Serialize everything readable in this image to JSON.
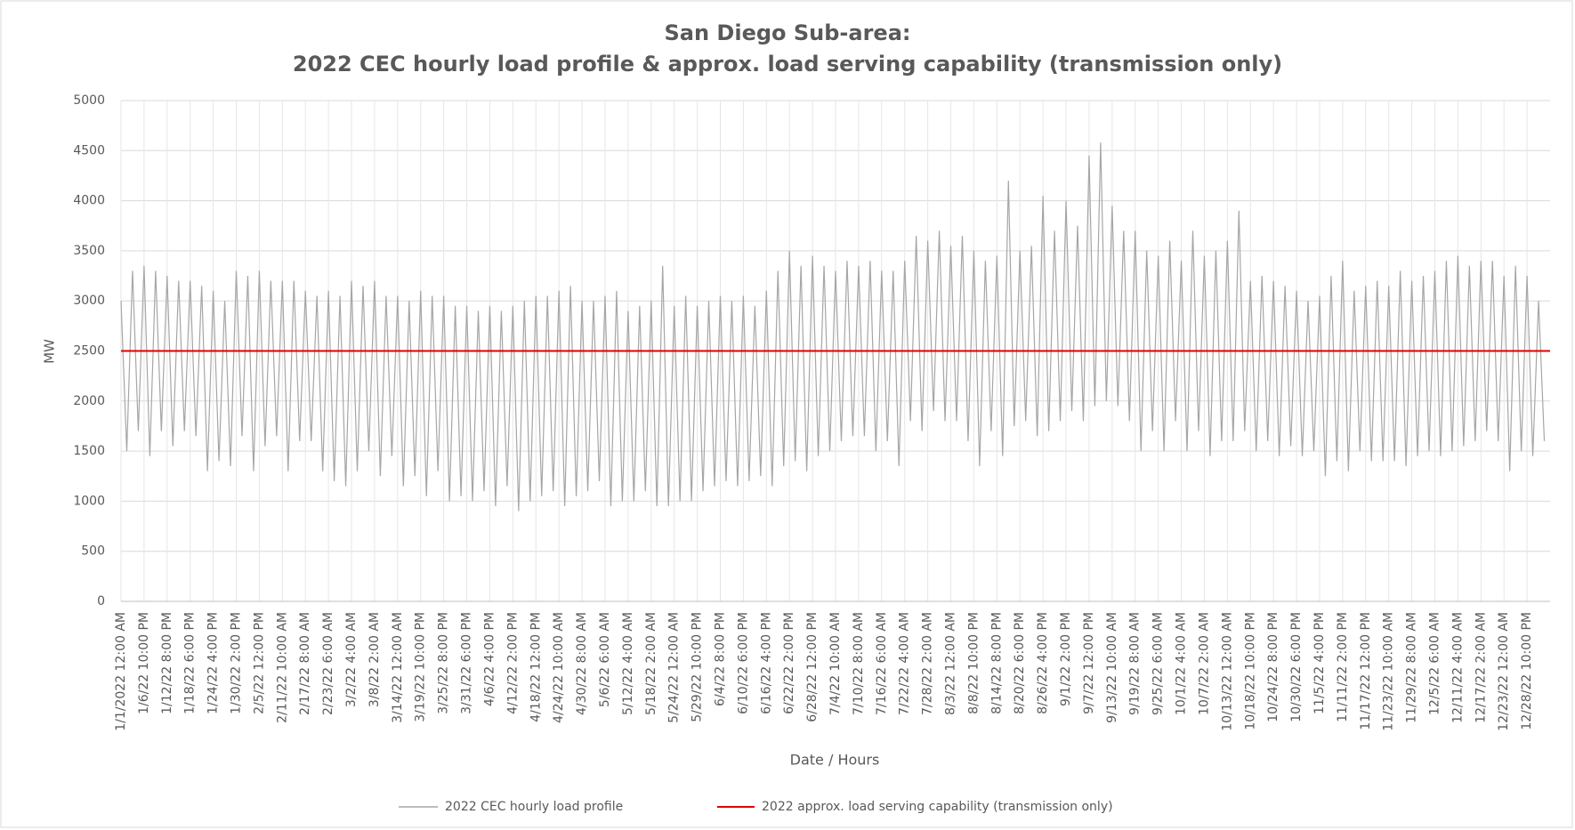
{
  "chart_data": {
    "type": "line",
    "title": [
      "San Diego Sub-area:",
      "2022 CEC hourly load profile & approx. load serving capability (transmission only)"
    ],
    "xlabel": "Date / Hours",
    "ylabel": "MW",
    "ylim": [
      0,
      5000
    ],
    "yticks": [
      0,
      500,
      1000,
      1500,
      2000,
      2500,
      3000,
      3500,
      4000,
      4500,
      5000
    ],
    "grid": true,
    "legend": "bottom",
    "categories": [
      "1/1/2022 12:00 AM",
      null,
      null,
      null,
      "1/6/22 10:00 PM",
      null,
      null,
      null,
      "1/12/22 8:00 PM",
      null,
      null,
      null,
      "1/18/22 6:00 PM",
      null,
      null,
      null,
      "1/24/22 4:00 PM",
      null,
      null,
      null,
      "1/30/22 2:00 PM",
      null,
      null,
      null,
      "2/5/22 12:00 PM",
      null,
      null,
      null,
      "2/11/22 10:00 AM",
      null,
      null,
      null,
      "2/17/22 8:00 AM",
      null,
      null,
      null,
      "2/23/22 6:00 AM",
      null,
      null,
      null,
      "3/2/22 4:00 AM",
      null,
      null,
      null,
      "3/8/22 2:00 AM",
      null,
      null,
      null,
      "3/14/22 12:00 AM",
      null,
      null,
      null,
      "3/19/22 10:00 PM",
      null,
      null,
      null,
      "3/25/22 8:00 PM",
      null,
      null,
      null,
      "3/31/22 6:00 PM",
      null,
      null,
      null,
      "4/6/22 4:00 PM",
      null,
      null,
      null,
      "4/12/22 2:00 PM",
      null,
      null,
      null,
      "4/18/22 12:00 PM",
      null,
      null,
      null,
      "4/24/22 10:00 AM",
      null,
      null,
      null,
      "4/30/22 8:00 AM",
      null,
      null,
      null,
      "5/6/22 6:00 AM",
      null,
      null,
      null,
      "5/12/22 4:00 AM",
      null,
      null,
      null,
      "5/18/22 2:00 AM",
      null,
      null,
      null,
      "5/24/22 12:00 AM",
      null,
      null,
      null,
      "5/29/22 10:00 PM",
      null,
      null,
      null,
      "6/4/22 8:00 PM",
      null,
      null,
      null,
      "6/10/22 6:00 PM",
      null,
      null,
      null,
      "6/16/22 4:00 PM",
      null,
      null,
      null,
      "6/22/22 2:00 PM",
      null,
      null,
      null,
      "6/28/22 12:00 PM",
      null,
      null,
      null,
      "7/4/22 10:00 AM",
      null,
      null,
      null,
      "7/10/22 8:00 AM",
      null,
      null,
      null,
      "7/16/22 6:00 AM",
      null,
      null,
      null,
      "7/22/22 4:00 AM",
      null,
      null,
      null,
      "7/28/22 2:00 AM",
      null,
      null,
      null,
      "8/3/22 12:00 AM",
      null,
      null,
      null,
      "8/8/22 10:00 PM",
      null,
      null,
      null,
      "8/14/22 8:00 PM",
      null,
      null,
      null,
      "8/20/22 6:00 PM",
      null,
      null,
      null,
      "8/26/22 4:00 PM",
      null,
      null,
      null,
      "9/1/22 2:00 PM",
      null,
      null,
      null,
      "9/7/22 12:00 PM",
      null,
      null,
      null,
      "9/13/22 10:00 AM",
      null,
      null,
      null,
      "9/19/22 8:00 AM",
      null,
      null,
      null,
      "9/25/22 6:00 AM",
      null,
      null,
      null,
      "10/1/22 4:00 AM",
      null,
      null,
      null,
      "10/7/22 2:00 AM",
      null,
      null,
      null,
      "10/13/22 12:00 AM",
      null,
      null,
      null,
      "10/18/22 10:00 PM",
      null,
      null,
      null,
      "10/24/22 8:00 PM",
      null,
      null,
      null,
      "10/30/22 6:00 PM",
      null,
      null,
      null,
      "11/5/22 4:00 PM",
      null,
      null,
      null,
      "11/11/22 2:00 PM",
      null,
      null,
      null,
      "11/17/22 12:00 PM",
      null,
      null,
      null,
      "11/23/22 10:00 AM",
      null,
      null,
      null,
      "11/29/22 8:00 AM",
      null,
      null,
      null,
      "12/5/22 6:00 AM",
      null,
      null,
      null,
      "12/11/22 4:00 AM",
      null,
      null,
      null,
      "12/17/22 2:00 AM",
      null,
      null,
      null,
      "12/23/22 12:00 AM",
      null,
      null,
      null,
      "12/28/22 10:00 PM",
      null,
      null,
      null
    ],
    "series": [
      {
        "name": "2022 CEC hourly load profile",
        "color": "#a6a6a6",
        "values": [
          3000,
          1500,
          3300,
          1700,
          3350,
          1450,
          3300,
          1700,
          3250,
          1550,
          3200,
          1700,
          3200,
          1650,
          3150,
          1300,
          3100,
          1400,
          3000,
          1350,
          3300,
          1650,
          3250,
          1300,
          3300,
          1550,
          3200,
          1650,
          3200,
          1300,
          3200,
          1600,
          3100,
          1600,
          3050,
          1300,
          3100,
          1200,
          3050,
          1150,
          3200,
          1300,
          3150,
          1500,
          3200,
          1250,
          3050,
          1450,
          3050,
          1150,
          3000,
          1250,
          3100,
          1050,
          3050,
          1300,
          3050,
          1000,
          2950,
          1050,
          2950,
          1000,
          2900,
          1100,
          2950,
          950,
          2900,
          1150,
          2950,
          900,
          3000,
          1000,
          3050,
          1050,
          3050,
          1100,
          3100,
          950,
          3150,
          1050,
          3000,
          1100,
          3000,
          1200,
          3050,
          950,
          3100,
          1000,
          2900,
          1000,
          2950,
          1100,
          3000,
          950,
          3350,
          950,
          2950,
          1000,
          3050,
          1000,
          2950,
          1100,
          3000,
          1150,
          3050,
          1200,
          3000,
          1150,
          3050,
          1200,
          2950,
          1250,
          3100,
          1150,
          3300,
          1350,
          3500,
          1400,
          3350,
          1300,
          3450,
          1450,
          3350,
          1500,
          3300,
          1600,
          3400,
          1650,
          3350,
          1650,
          3400,
          1500,
          3300,
          1600,
          3300,
          1350,
          3400,
          1800,
          3650,
          1700,
          3600,
          1900,
          3700,
          1800,
          3550,
          1800,
          3650,
          1600,
          3500,
          1350,
          3400,
          1700,
          3450,
          1450,
          4200,
          1750,
          3500,
          1800,
          3550,
          1650,
          4050,
          1700,
          3700,
          1800,
          4000,
          1900,
          3750,
          1800,
          4450,
          1950,
          4580,
          2000,
          3950,
          1950,
          3700,
          1800,
          3700,
          1500,
          3500,
          1700,
          3450,
          1500,
          3600,
          1800,
          3400,
          1500,
          3700,
          1700,
          3450,
          1450,
          3500,
          1600,
          3600,
          1600,
          3900,
          1700,
          3200,
          1500,
          3250,
          1600,
          3200,
          1450,
          3150,
          1550,
          3100,
          1450,
          3000,
          1500,
          3050,
          1250,
          3250,
          1400,
          3400,
          1300,
          3100,
          1500,
          3150,
          1400,
          3200,
          1400,
          3150,
          1400,
          3300,
          1350,
          3200,
          1450,
          3250,
          1500,
          3300,
          1450,
          3400,
          1500,
          3450,
          1550,
          3350,
          1600,
          3400,
          1700,
          3400,
          1600,
          3250,
          1300,
          3350,
          1500,
          3250,
          1450,
          3000,
          1600
        ]
      }
    ],
    "reference_line": {
      "name": "2022 approx. load serving  capability (transmission only)",
      "color": "#e00000",
      "value": 2500
    }
  }
}
